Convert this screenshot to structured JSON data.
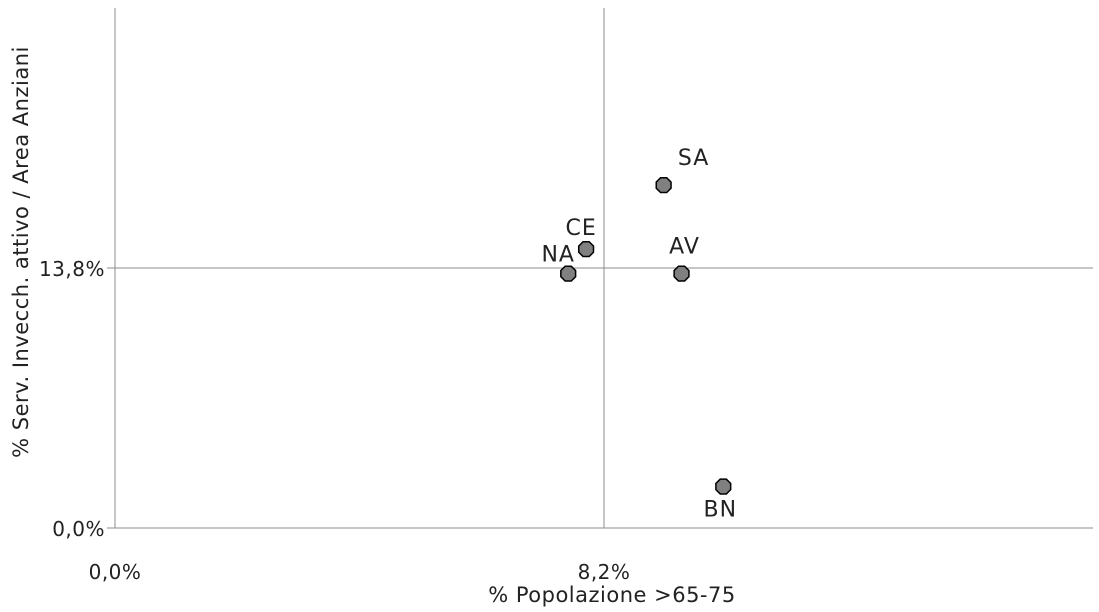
{
  "chart_data": {
    "type": "scatter",
    "xlabel": "% Popolazione >65-75",
    "ylabel": "% Serv. Invecch. attivo / Area Anziani",
    "x_ticks": [
      {
        "value": 0.0,
        "label": "0,0%"
      },
      {
        "value": 8.2,
        "label": "8,2%"
      }
    ],
    "y_ticks": [
      {
        "value": 0.0,
        "label": "0,0%"
      },
      {
        "value": 13.8,
        "label": "13,8%"
      }
    ],
    "xlim": [
      0,
      16.4
    ],
    "ylim": [
      0,
      27.6
    ],
    "reference_lines": {
      "x": 8.2,
      "y": 13.8
    },
    "grid": false,
    "legend": "none",
    "marker_color": "#808080",
    "points": [
      {
        "label": "SA",
        "x": 9.2,
        "y": 18.2
      },
      {
        "label": "CE",
        "x": 7.9,
        "y": 14.8
      },
      {
        "label": "NA",
        "x": 7.6,
        "y": 13.5
      },
      {
        "label": "AV",
        "x": 9.5,
        "y": 13.5
      },
      {
        "label": "BN",
        "x": 10.2,
        "y": 2.2
      }
    ]
  }
}
